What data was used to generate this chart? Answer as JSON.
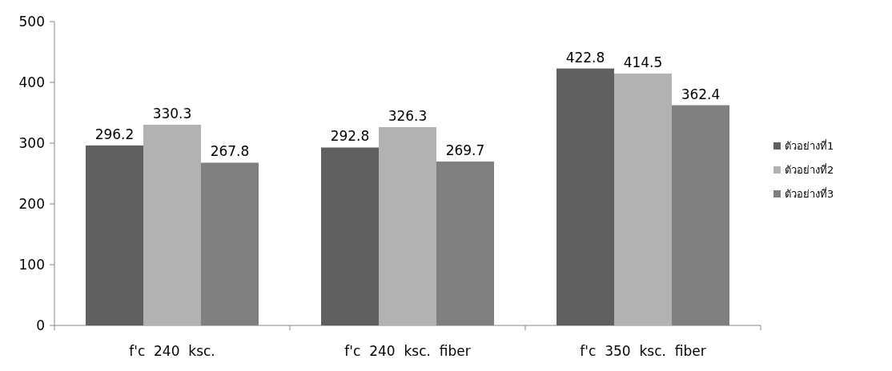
{
  "chart_data": {
    "type": "bar",
    "categories": [
      "f'c  240  ksc.",
      "f'c  240  ksc.  fiber",
      "f'c  350  ksc.  fiber"
    ],
    "series": [
      {
        "name": "ตัวอย่างที่1",
        "color": "#606060",
        "values": [
          296.2,
          292.8,
          422.8
        ]
      },
      {
        "name": "ตัวอย่างที่2",
        "color": "#b2b2b2",
        "values": [
          330.3,
          326.3,
          414.5
        ]
      },
      {
        "name": "ตัวอย่างที่3",
        "color": "#808080",
        "values": [
          267.8,
          269.7,
          362.4
        ]
      }
    ],
    "ylim": [
      0,
      500
    ],
    "yticks": [
      0,
      100,
      200,
      300,
      400,
      500
    ],
    "data_labels": true,
    "legend": "right"
  }
}
